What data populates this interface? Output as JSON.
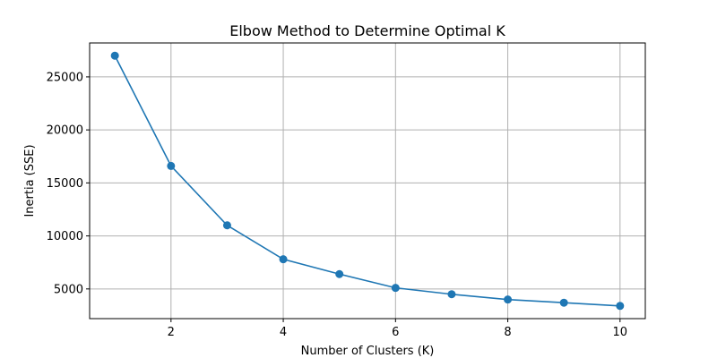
{
  "chart_data": {
    "type": "line",
    "title": "Elbow Method to Determine Optimal K",
    "xlabel": "Number of Clusters (K)",
    "ylabel": "Inertia (SSE)",
    "x": [
      1,
      2,
      3,
      4,
      5,
      6,
      7,
      8,
      9,
      10
    ],
    "series": [
      {
        "name": "Inertia",
        "values": [
          27000,
          16600,
          11000,
          7800,
          6400,
          5100,
          4500,
          4000,
          3700,
          3400
        ],
        "color": "#1f77b4",
        "marker": "circle"
      }
    ],
    "xlim": [
      0.55,
      10.45
    ],
    "ylim": [
      2200,
      28200
    ],
    "xticks": [
      2,
      4,
      6,
      8,
      10
    ],
    "yticks": [
      5000,
      10000,
      15000,
      20000,
      25000
    ],
    "grid": true
  }
}
